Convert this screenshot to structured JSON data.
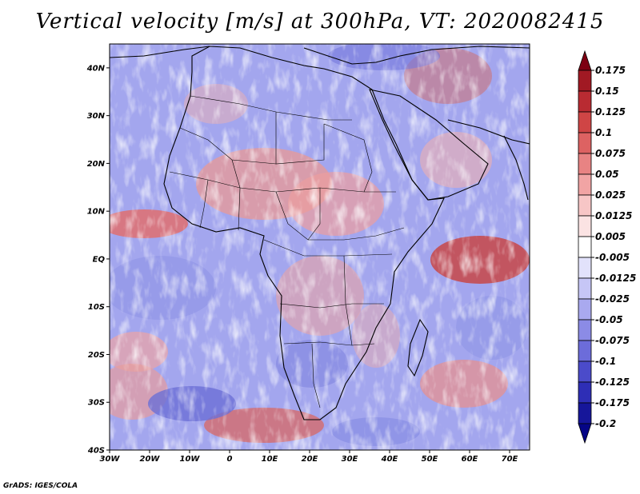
{
  "title": "Vertical velocity [m/s] at 300hPa, VT: 2020082415",
  "credit": "GrADS: IGES/COLA",
  "lat_labels": [
    "40N",
    "30N",
    "20N",
    "10N",
    "EQ",
    "10S",
    "20S",
    "30S",
    "40S"
  ],
  "lon_labels": [
    "30W",
    "20W",
    "10W",
    "0",
    "10E",
    "20E",
    "30E",
    "40E",
    "50E",
    "60E",
    "70E"
  ],
  "colorbar": {
    "labels": [
      "0.175",
      "0.15",
      "0.125",
      "0.1",
      "0.075",
      "0.05",
      "0.025",
      "0.0125",
      "0.005",
      "-0.005",
      "-0.0125",
      "-0.025",
      "-0.05",
      "-0.075",
      "-0.1",
      "-0.125",
      "-0.175",
      "-0.2"
    ],
    "colors": [
      "#7d0012",
      "#a11923",
      "#b92b32",
      "#cf4545",
      "#dd6262",
      "#e88383",
      "#f1a4a4",
      "#f7c6c6",
      "#fbe3e3",
      "#ffffff",
      "#e2e2fb",
      "#c6c6f6",
      "#a9a9ef",
      "#8b8be6",
      "#6c6cda",
      "#4b4bca",
      "#2e2eb6",
      "#16169a",
      "#050586"
    ]
  }
}
